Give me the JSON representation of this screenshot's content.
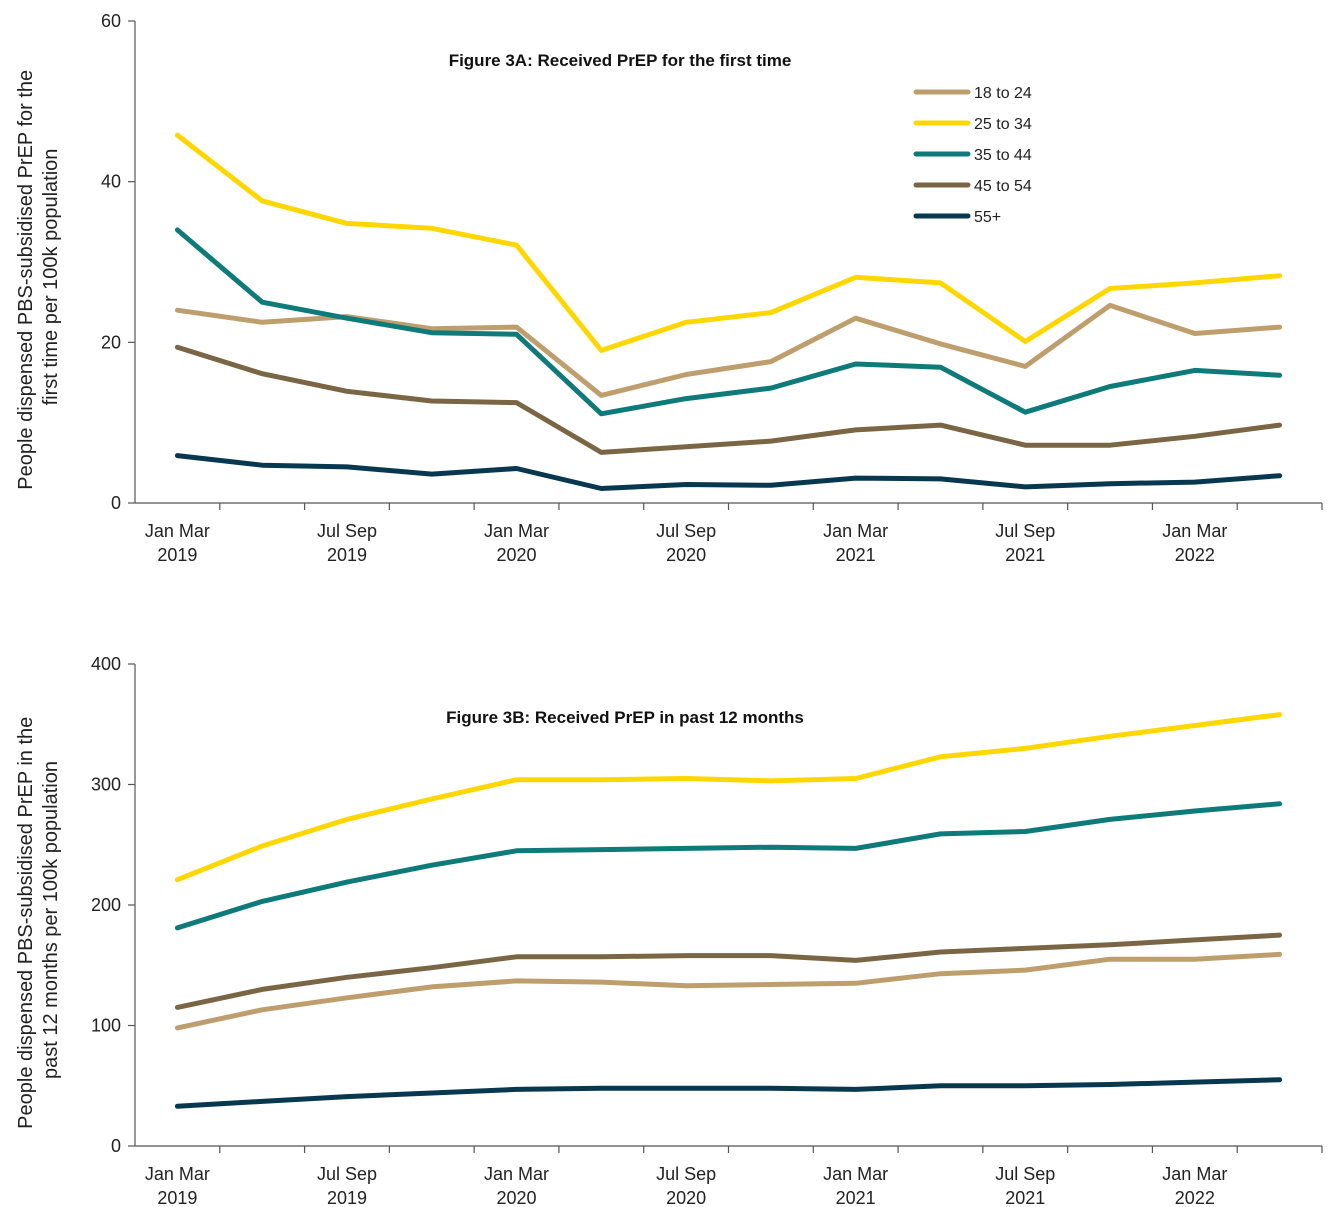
{
  "chart_data": [
    {
      "type": "line",
      "title": "Figure 3A: Received PrEP for the first time",
      "ylabel": [
        "People  dispensed PBS-subsidised PrEP for the",
        "first time per 100k population"
      ],
      "ylim": [
        0,
        60
      ],
      "yticks": [
        0,
        20,
        40,
        60
      ],
      "x": [
        "Jan Mar 2019",
        "Apr Jun 2019",
        "Jul Sep 2019",
        "Oct Dec 2019",
        "Jan Mar 2020",
        "Apr Jun 2020",
        "Jul Sep 2020",
        "Oct Dec 2020",
        "Jan Mar 2021",
        "Apr Jun 2021",
        "Jul Sep 2021",
        "Oct Dec 2021",
        "Jan Mar 2022",
        "Apr Jun 2022"
      ],
      "xtick_labels": [
        {
          "index": 0,
          "line1": "Jan Mar",
          "line2": "2019"
        },
        {
          "index": 2,
          "line1": "Jul Sep",
          "line2": "2019"
        },
        {
          "index": 4,
          "line1": "Jan Mar",
          "line2": "2020"
        },
        {
          "index": 6,
          "line1": "Jul Sep",
          "line2": "2020"
        },
        {
          "index": 8,
          "line1": "Jan Mar",
          "line2": "2021"
        },
        {
          "index": 10,
          "line1": "Jul Sep",
          "line2": "2021"
        },
        {
          "index": 12,
          "line1": "Jan Mar",
          "line2": "2022"
        }
      ],
      "legend": "inside-top-right",
      "series": [
        {
          "name": "18 to 24",
          "color": "#bf9e6e",
          "values": [
            24.0,
            22.5,
            23.2,
            21.7,
            21.9,
            13.4,
            16.0,
            17.6,
            23.0,
            19.8,
            17.0,
            24.6,
            21.1,
            21.9
          ]
        },
        {
          "name": "25 to 34",
          "color": "#ffd700",
          "values": [
            45.8,
            37.6,
            34.8,
            34.2,
            32.1,
            19.0,
            22.5,
            23.7,
            28.1,
            27.4,
            20.1,
            26.7,
            27.4,
            28.3
          ]
        },
        {
          "name": "35 to 44",
          "color": "#0e7a7a",
          "values": [
            34.0,
            25.0,
            23.0,
            21.2,
            21.0,
            11.1,
            13.0,
            14.3,
            17.3,
            16.9,
            11.3,
            14.5,
            16.5,
            15.9
          ]
        },
        {
          "name": "45 to 54",
          "color": "#7a6645",
          "values": [
            19.4,
            16.1,
            13.9,
            12.7,
            12.5,
            6.3,
            7.0,
            7.7,
            9.1,
            9.7,
            7.2,
            7.2,
            8.3,
            9.7
          ]
        },
        {
          "name": "55+",
          "color": "#083850",
          "values": [
            5.9,
            4.7,
            4.5,
            3.6,
            4.3,
            1.8,
            2.3,
            2.2,
            3.1,
            3.0,
            2.0,
            2.4,
            2.6,
            3.4
          ]
        }
      ]
    },
    {
      "type": "line",
      "title": "Figure 3B: Received PrEP in past 12 months",
      "ylabel": [
        "People  dispensed PBS-subsidised PrEP in the",
        "past 12 months per 100k population"
      ],
      "ylim": [
        0,
        400
      ],
      "yticks": [
        0,
        100,
        200,
        300,
        400
      ],
      "x": [
        "Jan Mar 2019",
        "Apr Jun 2019",
        "Jul Sep 2019",
        "Oct Dec 2019",
        "Jan Mar 2020",
        "Apr Jun 2020",
        "Jul Sep 2020",
        "Oct Dec 2020",
        "Jan Mar 2021",
        "Apr Jun 2021",
        "Jul Sep 2021",
        "Oct Dec 2021",
        "Jan Mar 2022",
        "Apr Jun 2022"
      ],
      "xtick_labels": [
        {
          "index": 0,
          "line1": "Jan Mar",
          "line2": "2019"
        },
        {
          "index": 2,
          "line1": "Jul Sep",
          "line2": "2019"
        },
        {
          "index": 4,
          "line1": "Jan Mar",
          "line2": "2020"
        },
        {
          "index": 6,
          "line1": "Jul Sep",
          "line2": "2020"
        },
        {
          "index": 8,
          "line1": "Jan Mar",
          "line2": "2021"
        },
        {
          "index": 10,
          "line1": "Jul Sep",
          "line2": "2021"
        },
        {
          "index": 12,
          "line1": "Jan Mar",
          "line2": "2022"
        }
      ],
      "series": [
        {
          "name": "18 to 24",
          "color": "#bf9e6e",
          "values": [
            98,
            113,
            123,
            132,
            137,
            136,
            133,
            134,
            135,
            143,
            146,
            155,
            155,
            159
          ]
        },
        {
          "name": "25 to 34",
          "color": "#ffd700",
          "values": [
            221,
            249,
            271,
            288,
            304,
            304,
            305,
            303,
            305,
            323,
            330,
            340,
            349,
            358
          ]
        },
        {
          "name": "35 to 44",
          "color": "#0e7a7a",
          "values": [
            181,
            203,
            219,
            233,
            245,
            246,
            247,
            248,
            247,
            259,
            261,
            271,
            278,
            284
          ]
        },
        {
          "name": "45 to 54",
          "color": "#7a6645",
          "values": [
            115,
            130,
            140,
            148,
            157,
            157,
            158,
            158,
            154,
            161,
            164,
            167,
            171,
            175
          ]
        },
        {
          "name": "55+",
          "color": "#083850",
          "values": [
            33,
            37,
            41,
            44,
            47,
            48,
            48,
            48,
            47,
            50,
            50,
            51,
            53,
            55
          ]
        }
      ]
    }
  ]
}
